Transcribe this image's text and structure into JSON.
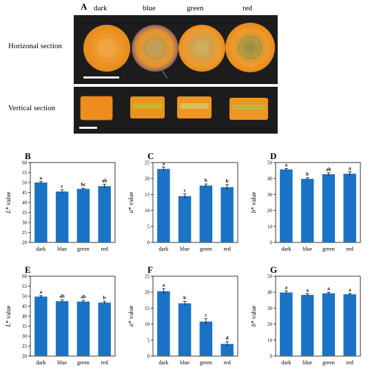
{
  "photo_panel": {
    "letter": "A",
    "column_labels": [
      "dark",
      "blue",
      "green",
      "red"
    ],
    "row_labels": [
      "Horizonal section",
      "Vertical section"
    ]
  },
  "colors": {
    "bar": "#1a73c5",
    "photo_background": "#1c1c1c",
    "carrot_orange": "#e98d1f"
  },
  "chart_data": [
    {
      "letter": "B",
      "type": "bar",
      "ylabel_var": "L",
      "ylabel_rest": " value",
      "categories": [
        "dark",
        "blue",
        "green",
        "red"
      ],
      "values": [
        50.0,
        45.5,
        46.8,
        48.2
      ],
      "errors": [
        0.5,
        0.8,
        0.4,
        1.0
      ],
      "letters": [
        "a",
        "c",
        "bc",
        "ab"
      ],
      "ylim": [
        20,
        60
      ],
      "ticks": [
        20,
        25,
        30,
        35,
        40,
        45,
        50,
        55,
        60
      ]
    },
    {
      "letter": "C",
      "type": "bar",
      "ylabel_var": "a",
      "ylabel_rest": " value",
      "categories": [
        "dark",
        "blue",
        "green",
        "red"
      ],
      "values": [
        23.0,
        14.5,
        17.8,
        17.3
      ],
      "errors": [
        0.6,
        0.7,
        0.5,
        0.8
      ],
      "letters": [
        "a",
        "c",
        "b",
        "b"
      ],
      "ylim": [
        0,
        25
      ],
      "ticks": [
        0,
        5,
        10,
        15,
        20,
        25
      ]
    },
    {
      "letter": "D",
      "type": "bar",
      "ylabel_var": "b",
      "ylabel_rest": " value",
      "categories": [
        "dark",
        "blue",
        "green",
        "red"
      ],
      "values": [
        45.7,
        39.8,
        42.7,
        43.0
      ],
      "errors": [
        0.7,
        0.7,
        0.9,
        1.2
      ],
      "letters": [
        "a",
        "b",
        "ab",
        "a"
      ],
      "ylim": [
        0,
        50
      ],
      "ticks": [
        0,
        10,
        20,
        30,
        40,
        50
      ]
    },
    {
      "letter": "E",
      "type": "bar",
      "ylabel_var": "L",
      "ylabel_rest": " value",
      "categories": [
        "dark",
        "blue",
        "green",
        "red"
      ],
      "values": [
        49.8,
        47.5,
        47.3,
        46.8
      ],
      "errors": [
        0.5,
        0.7,
        0.6,
        0.6
      ],
      "letters": [
        "a",
        "ab",
        "ab",
        "b"
      ],
      "ylim": [
        20,
        60
      ],
      "ticks": [
        20,
        25,
        30,
        35,
        40,
        45,
        50,
        55,
        60
      ]
    },
    {
      "letter": "F",
      "type": "bar",
      "ylabel_var": "a",
      "ylabel_rest": " value",
      "categories": [
        "dark",
        "blue",
        "green",
        "red"
      ],
      "values": [
        20.3,
        16.5,
        10.8,
        3.8
      ],
      "errors": [
        0.8,
        0.6,
        0.9,
        0.7
      ],
      "letters": [
        "a",
        "b",
        "c",
        "d"
      ],
      "ylim": [
        0,
        25
      ],
      "ticks": [
        0,
        5,
        10,
        15,
        20,
        25
      ]
    },
    {
      "letter": "G",
      "type": "bar",
      "ylabel_var": "b",
      "ylabel_rest": " value",
      "categories": [
        "dark",
        "blue",
        "green",
        "red"
      ],
      "values": [
        39.8,
        38.3,
        39.3,
        38.7
      ],
      "errors": [
        1.0,
        0.8,
        0.7,
        0.5
      ],
      "letters": [
        "a",
        "a",
        "a",
        "a"
      ],
      "ylim": [
        0,
        50
      ],
      "ticks": [
        0,
        10,
        20,
        30,
        40,
        50
      ]
    }
  ]
}
